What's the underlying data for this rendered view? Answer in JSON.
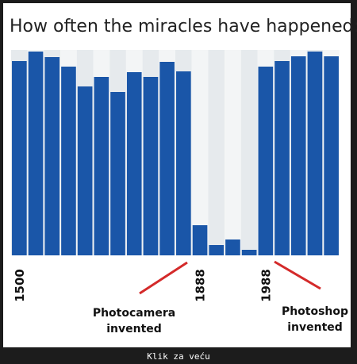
{
  "chart_data": {
    "type": "bar",
    "title": "How often the miracles have happened:",
    "categories": [
      "1500",
      null,
      null,
      null,
      null,
      null,
      null,
      null,
      null,
      null,
      null,
      "1888",
      null,
      null,
      null,
      "1988",
      null,
      null,
      null,
      null
    ],
    "values": [
      245,
      257,
      250,
      238,
      213,
      225,
      206,
      231,
      225,
      244,
      232,
      38,
      13,
      20,
      7,
      238,
      245,
      251,
      257,
      251
    ],
    "color": "#1a56a8",
    "ylim": [
      0,
      259
    ],
    "annotations": [
      {
        "lines": [
          "Photocamera",
          "invented"
        ]
      },
      {
        "lines": [
          "Photoshop",
          "invented"
        ]
      }
    ]
  },
  "caption": "Klik za veću"
}
